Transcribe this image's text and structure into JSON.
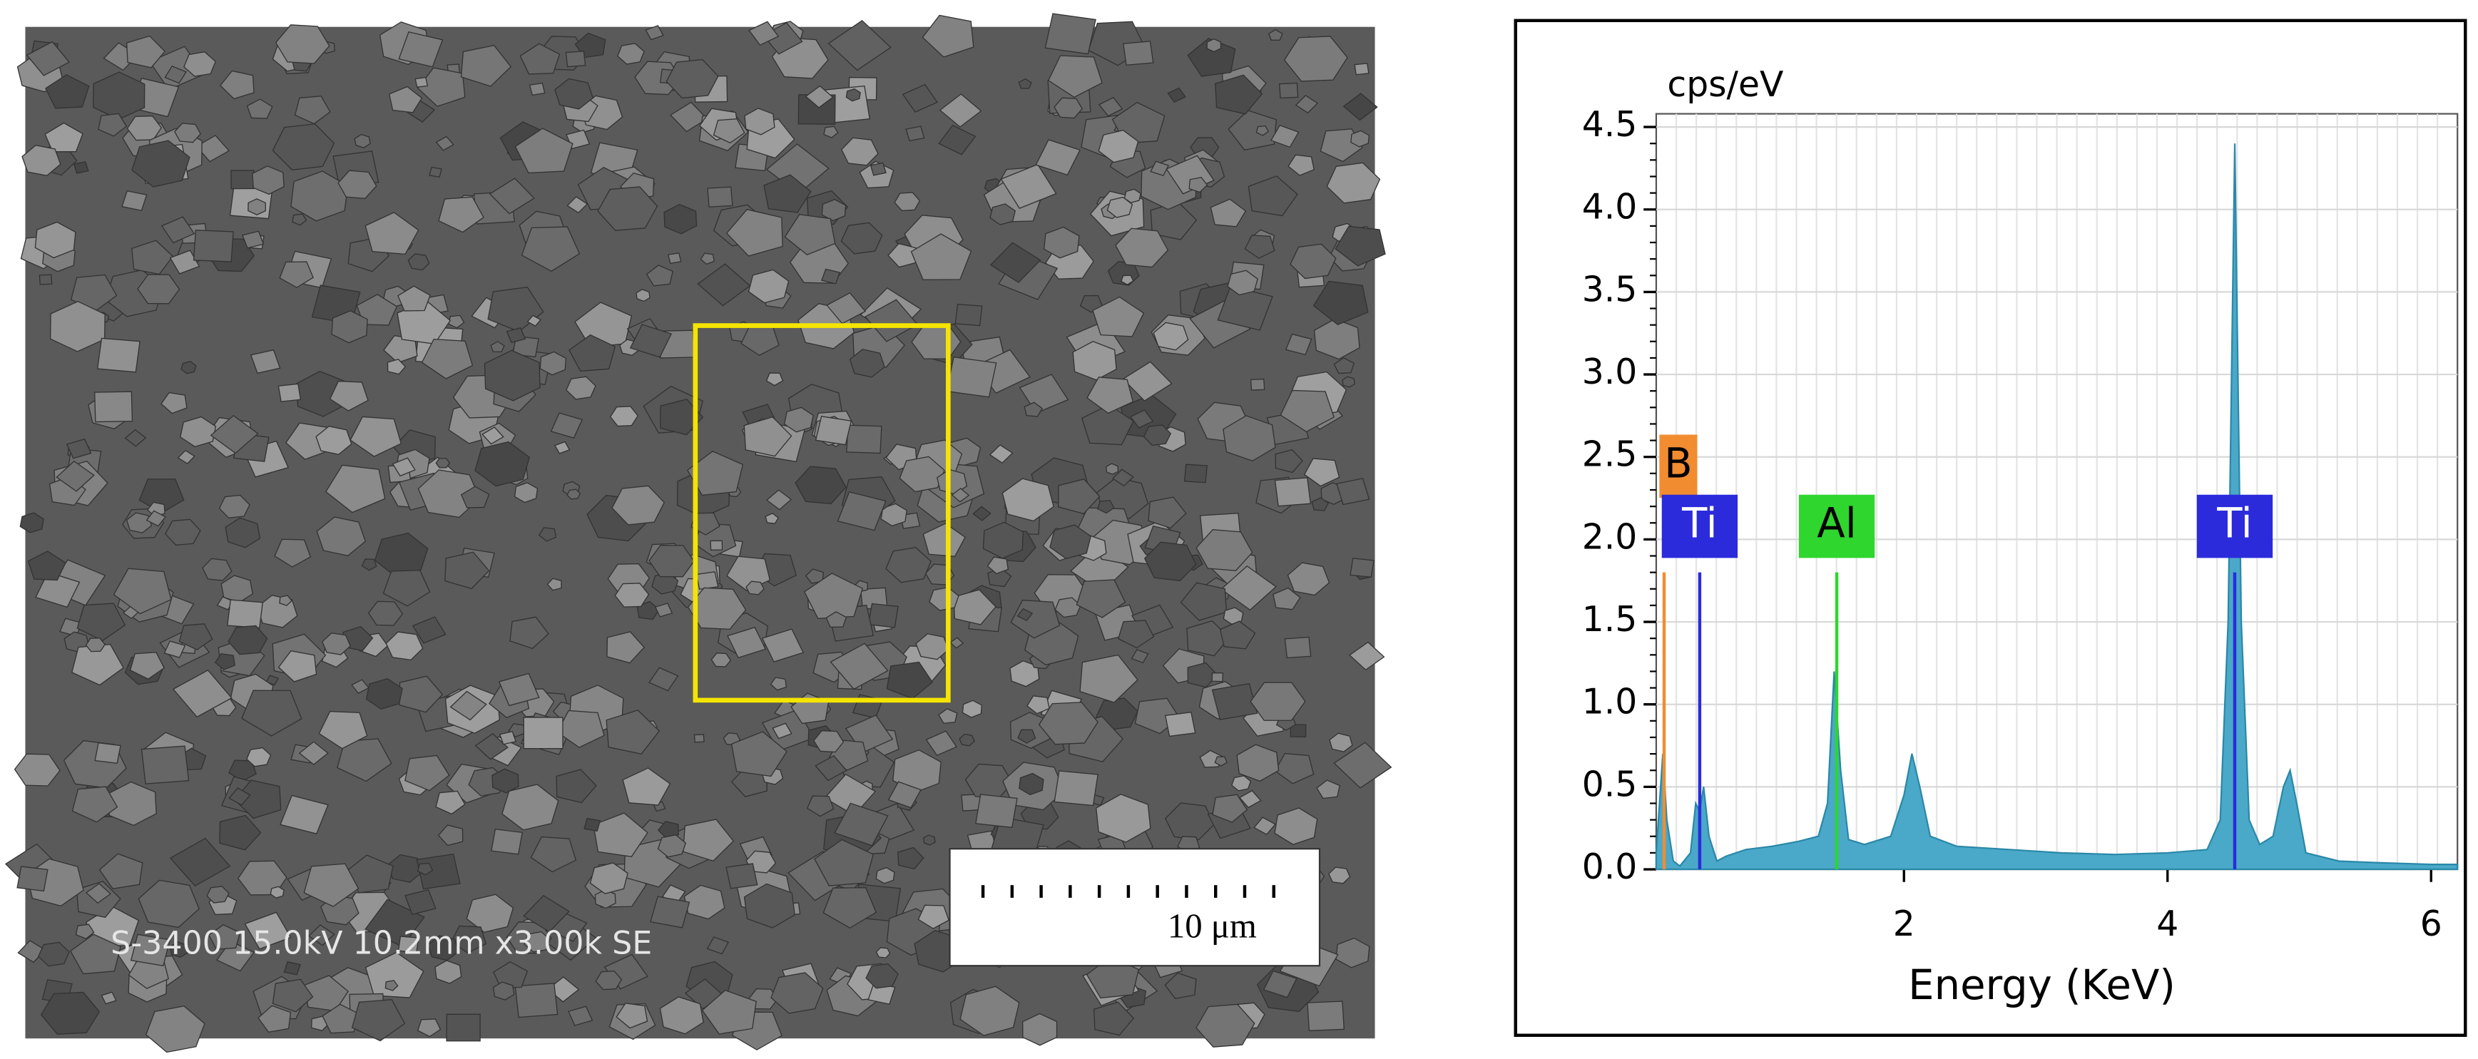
{
  "sem_image": {
    "info": "S-3400 15.0kV 10.2mm x3.00k SE",
    "scale_bar": "10 μm"
  },
  "chart_data": {
    "type": "area",
    "title": "cps/eV",
    "x_label": "Energy (KeV)",
    "color": "#4aa8c8",
    "x": [
      0.12,
      0.17,
      0.2,
      0.25,
      0.3,
      0.38,
      0.42,
      0.45,
      0.48,
      0.52,
      0.58,
      0.65,
      0.8,
      1.0,
      1.2,
      1.35,
      1.42,
      1.47,
      1.52,
      1.58,
      1.7,
      1.9,
      2.0,
      2.06,
      2.12,
      2.2,
      2.4,
      2.8,
      3.2,
      3.6,
      4.0,
      4.3,
      4.4,
      4.46,
      4.51,
      4.56,
      4.62,
      4.7,
      4.8,
      4.88,
      4.93,
      4.98,
      5.05,
      5.3,
      5.6,
      6.0,
      6.2
    ],
    "values": [
      0.1,
      0.7,
      0.3,
      0.05,
      0.02,
      0.1,
      0.4,
      0.35,
      0.5,
      0.2,
      0.05,
      0.08,
      0.12,
      0.14,
      0.17,
      0.2,
      0.4,
      1.2,
      0.6,
      0.18,
      0.15,
      0.2,
      0.45,
      0.7,
      0.5,
      0.2,
      0.14,
      0.12,
      0.1,
      0.09,
      0.1,
      0.12,
      0.3,
      1.5,
      4.4,
      1.5,
      0.3,
      0.15,
      0.2,
      0.5,
      0.6,
      0.4,
      0.1,
      0.05,
      0.04,
      0.03,
      0.03
    ],
    "xlim": [
      0.12,
      6.2
    ],
    "ylim": [
      0,
      4.58
    ],
    "xticks": [
      2,
      4,
      6
    ],
    "yticks": [
      {
        "value": 0,
        "label": "0.0"
      },
      {
        "value": 0.5,
        "label": "0.5"
      },
      {
        "value": 1,
        "label": "1.0"
      },
      {
        "value": 1.5,
        "label": "1.5"
      },
      {
        "value": 2,
        "label": "2.0"
      },
      {
        "value": 2.5,
        "label": "2.5"
      },
      {
        "value": 3,
        "label": "3.0"
      },
      {
        "value": 3.5,
        "label": "3.5"
      },
      {
        "value": 4,
        "label": "4.0"
      },
      {
        "value": 4.5,
        "label": "4.5"
      }
    ],
    "grid": true,
    "peaks": [
      {
        "label": "B",
        "x": 0.18,
        "height": 1.8,
        "color": "#f28c30"
      },
      {
        "label": "Ti",
        "x": 0.45,
        "height": 1.8,
        "color": "#2b2bdc"
      },
      {
        "label": "Al",
        "x": 1.49,
        "height": 1.8,
        "color": "#2ed62e"
      },
      {
        "label": "Ti",
        "x": 4.51,
        "height": 1.8,
        "color": "#2b2bdc"
      }
    ]
  }
}
